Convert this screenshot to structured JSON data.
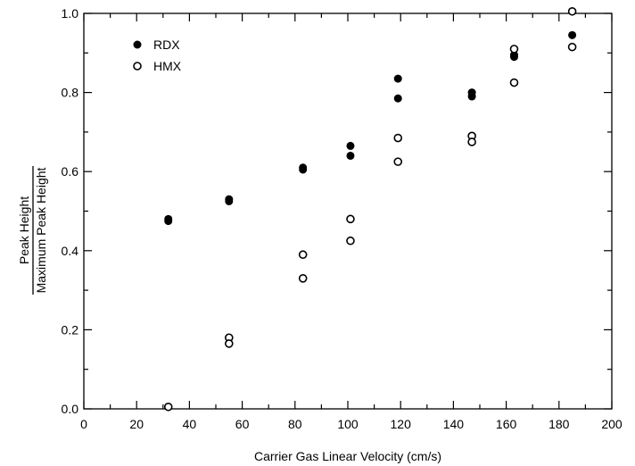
{
  "chart_data": {
    "type": "scatter",
    "title": "",
    "xlabel": "Carrier Gas Linear Velocity (cm/s)",
    "ylabel_numerator": "Peak Height",
    "ylabel_denominator": "Maximum Peak Height",
    "xlim": [
      0,
      200
    ],
    "ylim": [
      0.0,
      1.0
    ],
    "x_ticks": [
      0,
      20,
      40,
      60,
      80,
      100,
      120,
      140,
      160,
      180,
      200
    ],
    "y_ticks": [
      0.0,
      0.2,
      0.4,
      0.6,
      0.8,
      1.0
    ],
    "x_tick_labels": [
      "0",
      "20",
      "40",
      "60",
      "80",
      "100",
      "120",
      "140",
      "160",
      "180",
      "200"
    ],
    "y_tick_labels": [
      "0.0",
      "0.2",
      "0.4",
      "0.6",
      "0.8",
      "1.0"
    ],
    "grid": false,
    "legend_position": "top-left",
    "series": [
      {
        "name": "RDX",
        "marker": "filled-circle",
        "color": "#000000",
        "points": [
          [
            32,
            0.48
          ],
          [
            32,
            0.475
          ],
          [
            55,
            0.53
          ],
          [
            55,
            0.525
          ],
          [
            83,
            0.61
          ],
          [
            83,
            0.605
          ],
          [
            101,
            0.665
          ],
          [
            101,
            0.64
          ],
          [
            119,
            0.835
          ],
          [
            119,
            0.785
          ],
          [
            147,
            0.8
          ],
          [
            147,
            0.79
          ],
          [
            163,
            0.895
          ],
          [
            163,
            0.89
          ],
          [
            185,
            0.945
          ]
        ]
      },
      {
        "name": "HMX",
        "marker": "open-circle",
        "color": "#000000",
        "points": [
          [
            32,
            0.005
          ],
          [
            55,
            0.18
          ],
          [
            55,
            0.165
          ],
          [
            83,
            0.39
          ],
          [
            83,
            0.33
          ],
          [
            101,
            0.48
          ],
          [
            101,
            0.425
          ],
          [
            119,
            0.685
          ],
          [
            119,
            0.625
          ],
          [
            147,
            0.69
          ],
          [
            147,
            0.675
          ],
          [
            163,
            0.91
          ],
          [
            163,
            0.825
          ],
          [
            185,
            1.005
          ],
          [
            185,
            0.915
          ]
        ]
      }
    ]
  }
}
